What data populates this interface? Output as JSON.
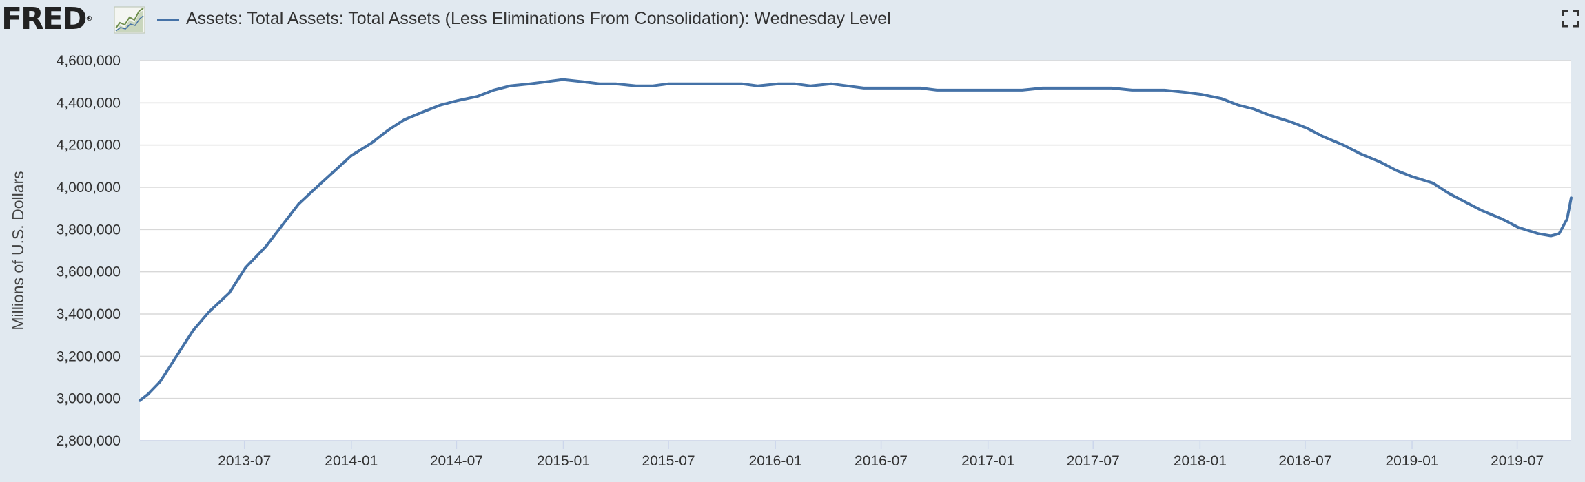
{
  "header": {
    "logo_text": "FRED",
    "logo_mark": "®",
    "series_title": "Assets: Total Assets: Total Assets (Less Eliminations From Consolidation): Wednesday Level"
  },
  "icons": {
    "logo_graph": "line-graph-icon",
    "fullscreen": "fullscreen-icon"
  },
  "colors": {
    "series_line": "#4572a7",
    "plot_background": "#ffffff",
    "page_background": "#e1e9f0",
    "gridline": "#d8d8d8"
  },
  "chart_data": {
    "type": "line",
    "title": "",
    "xlabel": "",
    "ylabel": "Millions of U.S. Dollars",
    "grid": true,
    "ylim": [
      2800000,
      4600000
    ],
    "yticks": [
      2800000,
      3000000,
      3200000,
      3400000,
      3600000,
      3800000,
      4000000,
      4200000,
      4400000,
      4600000
    ],
    "ytick_labels": [
      "2,800,000",
      "3,000,000",
      "3,200,000",
      "3,400,000",
      "3,600,000",
      "3,800,000",
      "4,000,000",
      "4,200,000",
      "4,400,000",
      "4,600,000"
    ],
    "xlim": [
      "2013-01-02",
      "2019-10-02"
    ],
    "xticks": [
      "2013-07-01",
      "2014-01-01",
      "2014-07-01",
      "2015-01-01",
      "2015-07-01",
      "2016-01-01",
      "2016-07-01",
      "2017-01-01",
      "2017-07-01",
      "2018-01-01",
      "2018-07-01",
      "2019-01-01",
      "2019-07-01"
    ],
    "xtick_labels": [
      "2013-07",
      "2014-01",
      "2014-07",
      "2015-01",
      "2015-07",
      "2016-01",
      "2016-07",
      "2017-01",
      "2017-07",
      "2018-01",
      "2018-07",
      "2019-01",
      "2019-07"
    ],
    "series": [
      {
        "name": "Assets: Total Assets: Total Assets (Less Eliminations From Consolidation): Wednesday Level",
        "x": [
          "2013-01-02",
          "2013-01-16",
          "2013-02-06",
          "2013-03-06",
          "2013-04-03",
          "2013-05-01",
          "2013-06-05",
          "2013-07-03",
          "2013-08-07",
          "2013-09-04",
          "2013-10-02",
          "2013-11-06",
          "2013-12-04",
          "2014-01-01",
          "2014-02-05",
          "2014-03-05",
          "2014-04-02",
          "2014-05-07",
          "2014-06-04",
          "2014-07-02",
          "2014-08-06",
          "2014-09-03",
          "2014-10-01",
          "2014-11-05",
          "2014-12-03",
          "2014-12-31",
          "2015-02-04",
          "2015-03-04",
          "2015-04-01",
          "2015-05-06",
          "2015-06-03",
          "2015-07-01",
          "2015-08-05",
          "2015-09-02",
          "2015-10-07",
          "2015-11-04",
          "2015-12-02",
          "2016-01-06",
          "2016-02-03",
          "2016-03-02",
          "2016-04-06",
          "2016-05-04",
          "2016-06-01",
          "2016-07-06",
          "2016-08-03",
          "2016-09-07",
          "2016-10-05",
          "2016-11-02",
          "2016-12-07",
          "2017-01-04",
          "2017-02-01",
          "2017-03-01",
          "2017-04-05",
          "2017-05-03",
          "2017-06-07",
          "2017-07-05",
          "2017-08-02",
          "2017-09-06",
          "2017-10-04",
          "2017-11-01",
          "2017-12-06",
          "2018-01-03",
          "2018-02-07",
          "2018-03-07",
          "2018-04-04",
          "2018-05-02",
          "2018-06-06",
          "2018-07-04",
          "2018-08-01",
          "2018-09-05",
          "2018-10-03",
          "2018-11-07",
          "2018-12-05",
          "2019-01-02",
          "2019-02-06",
          "2019-03-06",
          "2019-04-03",
          "2019-05-01",
          "2019-06-05",
          "2019-07-03",
          "2019-08-07",
          "2019-08-28",
          "2019-09-11",
          "2019-09-25",
          "2019-10-02"
        ],
        "values": [
          2990000,
          3020000,
          3080000,
          3200000,
          3320000,
          3410000,
          3500000,
          3620000,
          3720000,
          3820000,
          3920000,
          4010000,
          4080000,
          4150000,
          4210000,
          4270000,
          4320000,
          4360000,
          4390000,
          4410000,
          4430000,
          4460000,
          4480000,
          4490000,
          4500000,
          4510000,
          4500000,
          4490000,
          4490000,
          4480000,
          4480000,
          4490000,
          4490000,
          4490000,
          4490000,
          4490000,
          4480000,
          4490000,
          4490000,
          4480000,
          4490000,
          4480000,
          4470000,
          4470000,
          4470000,
          4470000,
          4460000,
          4460000,
          4460000,
          4460000,
          4460000,
          4460000,
          4470000,
          4470000,
          4470000,
          4470000,
          4470000,
          4460000,
          4460000,
          4460000,
          4450000,
          4440000,
          4420000,
          4390000,
          4370000,
          4340000,
          4310000,
          4280000,
          4240000,
          4200000,
          4160000,
          4120000,
          4080000,
          4050000,
          4020000,
          3970000,
          3930000,
          3890000,
          3850000,
          3810000,
          3780000,
          3770000,
          3780000,
          3850000,
          3950000
        ]
      }
    ]
  }
}
